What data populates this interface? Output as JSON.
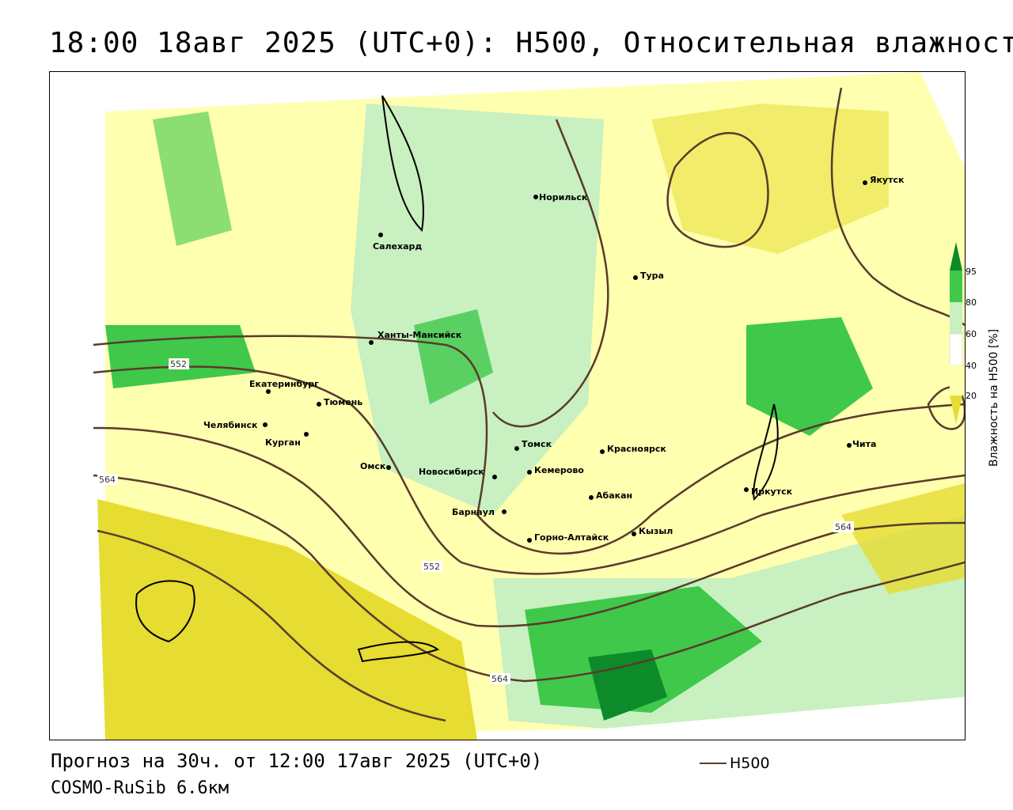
{
  "header": {
    "title": "18:00 18авг 2025 (UTC+0): H500, Относительная влажность"
  },
  "map": {
    "cities": [
      {
        "name": "Норильск"
      },
      {
        "name": "Якутск"
      },
      {
        "name": "Салехард"
      },
      {
        "name": "Тура"
      },
      {
        "name": "Ханты-Мансийск"
      },
      {
        "name": "Екатеринбург"
      },
      {
        "name": "Тюмень"
      },
      {
        "name": "Челябинск"
      },
      {
        "name": "Курган"
      },
      {
        "name": "Омск"
      },
      {
        "name": "Новосибирск"
      },
      {
        "name": "Томск"
      },
      {
        "name": "Кемерово"
      },
      {
        "name": "Красноярск"
      },
      {
        "name": "Абакан"
      },
      {
        "name": "Барнаул"
      },
      {
        "name": "Горно-Алтайск"
      },
      {
        "name": "Кызыл"
      },
      {
        "name": "Иркутск"
      },
      {
        "name": "Чита"
      }
    ],
    "contour_labels": [
      "552",
      "564",
      "552",
      "564",
      "564"
    ],
    "colors": {
      "h500_line": "#5a3b2a",
      "green_dark": "#0d8a2a",
      "green_mid": "#3fc84a",
      "green_light": "#c8f0c0",
      "yellow_light": "#ffffb0",
      "yellow_dark": "#e6dc32"
    }
  },
  "legend": {
    "title": "Влажность на H500 [%]",
    "ticks": [
      "95",
      "80",
      "60",
      "40",
      "20"
    ]
  },
  "footer": {
    "forecast": "Прогноз на 30ч. от 12:00 17авг 2025 (UTC+0)",
    "model": "COSMO-RuSib 6.6км",
    "line_legend": "H500"
  }
}
